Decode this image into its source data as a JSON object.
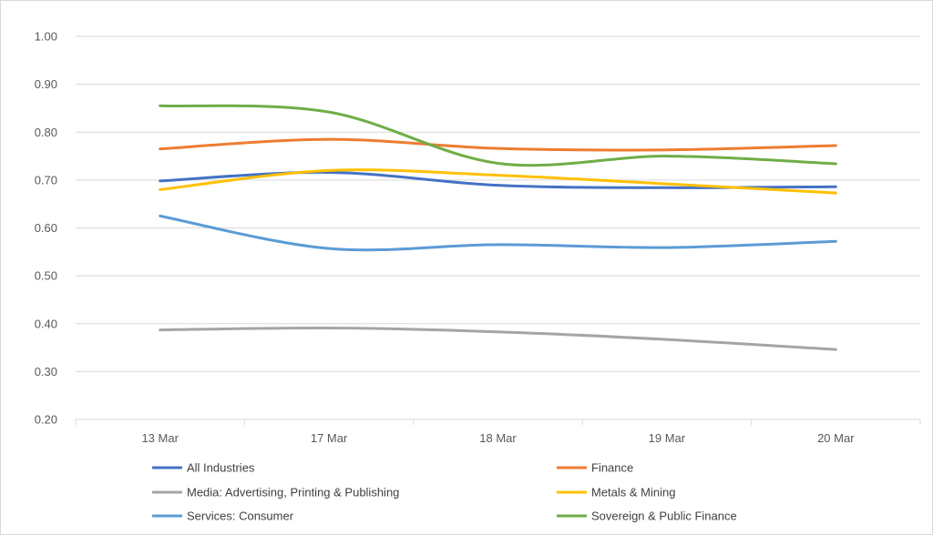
{
  "chart_data": {
    "type": "line",
    "title": "",
    "xlabel": "",
    "ylabel": "",
    "categories": [
      "13 Mar",
      "17 Mar",
      "18 Mar",
      "19 Mar",
      "20 Mar"
    ],
    "ylim": [
      0.2,
      1.0
    ],
    "yticks": [
      "0.20",
      "0.30",
      "0.40",
      "0.50",
      "0.60",
      "0.70",
      "0.80",
      "0.90",
      "1.00"
    ],
    "grid": true,
    "legend_position": "bottom",
    "series": [
      {
        "name": "All Industries",
        "color": "#4472c4",
        "values": [
          0.698,
          0.716,
          0.689,
          0.684,
          0.686
        ]
      },
      {
        "name": "Finance",
        "color": "#ed7d31",
        "values": [
          0.765,
          0.785,
          0.766,
          0.763,
          0.772
        ]
      },
      {
        "name": "Media: Advertising, Printing & Publishing",
        "color": "#a5a5a5",
        "values": [
          0.387,
          0.391,
          0.383,
          0.367,
          0.346
        ]
      },
      {
        "name": "Metals & Mining",
        "color": "#ffc000",
        "values": [
          0.68,
          0.72,
          0.71,
          0.692,
          0.673
        ]
      },
      {
        "name": "Services: Consumer",
        "color": "#5b9bd5",
        "values": [
          0.625,
          0.557,
          0.565,
          0.559,
          0.572
        ]
      },
      {
        "name": "Sovereign & Public Finance",
        "color": "#70ad47",
        "values": [
          0.855,
          0.842,
          0.735,
          0.75,
          0.734
        ]
      }
    ]
  }
}
